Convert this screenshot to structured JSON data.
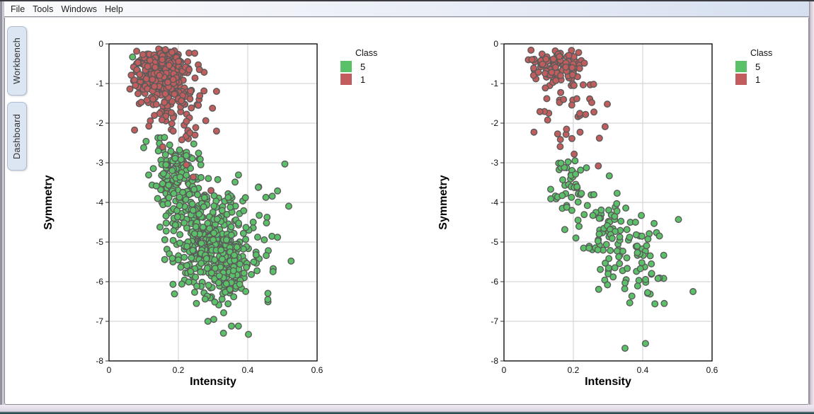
{
  "menu": {
    "items": [
      "File",
      "Tools",
      "Windows",
      "Help"
    ]
  },
  "sidebar": {
    "tabs": [
      {
        "label": "Workbench"
      },
      {
        "label": "Dashboard"
      }
    ]
  },
  "colors": {
    "class5_green": "#5bc168",
    "class1_red": "#c15d5d",
    "grid": "#d6d6d6",
    "point_outline": "#5a5a5a"
  },
  "chart_data": [
    {
      "type": "scatter",
      "title": "",
      "xlabel": "Intensity",
      "ylabel": "Symmetry",
      "xlim": [
        0,
        0.6
      ],
      "ylim": [
        -8,
        0
      ],
      "xtick_values": [
        0,
        0.2,
        0.4,
        0.6
      ],
      "xtick_labels": [
        "0",
        "0.2",
        "0.4",
        "0.6"
      ],
      "ytick_values": [
        0,
        -1,
        -2,
        -3,
        -4,
        -5,
        -6,
        -7,
        -8
      ],
      "ytick_labels": [
        "0",
        "-1",
        "-2",
        "-3",
        "-4",
        "-5",
        "-6",
        "-7",
        "-8"
      ],
      "grid": true,
      "grid_color": "#d6d6d6",
      "point_stroke": "#5a5a5a",
      "point_radius": 4.3,
      "legend": {
        "title": "Class",
        "position": "right-top",
        "entries": [
          {
            "label": "5",
            "color": "#5bc168"
          },
          {
            "label": "1",
            "color": "#c15d5d"
          }
        ]
      },
      "series": [
        {
          "name": "5",
          "color": "#5bc168",
          "blobs": [
            {
              "n": 120,
              "cx": 0.19,
              "cy": -3.35,
              "sx": 0.032,
              "sy": 0.42,
              "tilt": -8,
              "seed": 11,
              "clip": [
                0.1,
                0.3,
                -4.4,
                -2.35
              ]
            },
            {
              "n": 300,
              "cx": 0.27,
              "cy": -4.85,
              "sx": 0.05,
              "sy": 0.62,
              "tilt": -10,
              "seed": 12,
              "clip": [
                0.12,
                0.46,
                -6.6,
                -3.0
              ]
            },
            {
              "n": 140,
              "cx": 0.335,
              "cy": -5.55,
              "sx": 0.048,
              "sy": 0.5,
              "tilt": -8,
              "seed": 13,
              "clip": [
                0.17,
                0.5,
                -6.9,
                -4.2
              ]
            },
            {
              "n": 28,
              "cx": 0.42,
              "cy": -4.6,
              "sx": 0.045,
              "sy": 0.75,
              "tilt": 0,
              "seed": 14,
              "clip": [
                0.33,
                0.55,
                -6.3,
                -3.4
              ]
            }
          ],
          "points": [
            [
              0.068,
              -0.33
            ],
            [
              0.107,
              -2.46
            ],
            [
              0.1,
              -2.62
            ],
            [
              0.16,
              -2.36
            ],
            [
              0.507,
              -3.03
            ],
            [
              0.486,
              -3.71
            ],
            [
              0.525,
              -5.48
            ],
            [
              0.486,
              -4.88
            ],
            [
              0.33,
              -7.3
            ],
            [
              0.402,
              -7.33
            ],
            [
              0.353,
              -7.12
            ],
            [
              0.373,
              -7.12
            ],
            [
              0.302,
              -6.95
            ],
            [
              0.458,
              -6.45
            ],
            [
              0.285,
              -7.0
            ],
            [
              0.252,
              -6.55
            ]
          ]
        },
        {
          "name": "1",
          "color": "#c15d5d",
          "blobs": [
            {
              "n": 300,
              "cx": 0.15,
              "cy": -0.7,
              "sx": 0.042,
              "sy": 0.34,
              "tilt": 0,
              "seed": 21,
              "clip": [
                0.06,
                0.3,
                -1.75,
                -0.12
              ]
            },
            {
              "n": 90,
              "cx": 0.175,
              "cy": -1.35,
              "sx": 0.055,
              "sy": 0.45,
              "tilt": 0,
              "seed": 22,
              "clip": [
                0.06,
                0.33,
                -2.45,
                -0.5
              ]
            }
          ],
          "points": [
            [
              0.185,
              -2.2
            ],
            [
              0.248,
              -2.3
            ],
            [
              0.21,
              -2.42
            ],
            [
              0.223,
              -3.05
            ],
            [
              0.243,
              -3.36
            ],
            [
              0.294,
              -3.7
            ],
            [
              0.155,
              -2.6
            ],
            [
              0.31,
              -2.2
            ]
          ]
        }
      ]
    },
    {
      "type": "scatter",
      "title": "",
      "xlabel": "Intensity",
      "ylabel": "Symmetry",
      "xlim": [
        0,
        0.6
      ],
      "ylim": [
        -8,
        0
      ],
      "xtick_values": [
        0,
        0.2,
        0.4,
        0.6
      ],
      "xtick_labels": [
        "0",
        "0.2",
        "0.4",
        "0.6"
      ],
      "ytick_values": [
        0,
        -1,
        -2,
        -3,
        -4,
        -5,
        -6,
        -7,
        -8
      ],
      "ytick_labels": [
        "0",
        "-1",
        "-2",
        "-3",
        "-4",
        "-5",
        "-6",
        "-7",
        "-8"
      ],
      "grid": true,
      "grid_color": "#d6d6d6",
      "point_stroke": "#5a5a5a",
      "point_radius": 4.3,
      "legend": {
        "title": "Class",
        "position": "right-top",
        "entries": [
          {
            "label": "5",
            "color": "#5bc168"
          },
          {
            "label": "1",
            "color": "#c15d5d"
          }
        ]
      },
      "series": [
        {
          "name": "5",
          "color": "#5bc168",
          "blobs": [
            {
              "n": 40,
              "cx": 0.185,
              "cy": -3.5,
              "sx": 0.028,
              "sy": 0.4,
              "tilt": -8,
              "seed": 31,
              "clip": [
                0.12,
                0.26,
                -4.4,
                -2.75
              ]
            },
            {
              "n": 80,
              "cx": 0.3,
              "cy": -4.75,
              "sx": 0.055,
              "sy": 0.6,
              "tilt": -10,
              "seed": 32,
              "clip": [
                0.15,
                0.47,
                -6.4,
                -3.2
              ]
            },
            {
              "n": 45,
              "cx": 0.385,
              "cy": -5.6,
              "sx": 0.055,
              "sy": 0.5,
              "tilt": -6,
              "seed": 33,
              "clip": [
                0.24,
                0.5,
                -6.7,
                -4.4
              ]
            }
          ],
          "points": [
            [
              0.503,
              -4.43
            ],
            [
              0.545,
              -6.25
            ],
            [
              0.349,
              -7.68
            ],
            [
              0.408,
              -7.56
            ],
            [
              0.462,
              -6.55
            ],
            [
              0.205,
              -2.95
            ]
          ]
        },
        {
          "name": "1",
          "color": "#c15d5d",
          "blobs": [
            {
              "n": 110,
              "cx": 0.155,
              "cy": -0.55,
              "sx": 0.04,
              "sy": 0.26,
              "tilt": 0,
              "seed": 41,
              "clip": [
                0.07,
                0.28,
                -1.3,
                -0.12
              ]
            },
            {
              "n": 34,
              "cx": 0.175,
              "cy": -1.6,
              "sx": 0.048,
              "sy": 0.55,
              "tilt": 0,
              "seed": 42,
              "clip": [
                0.08,
                0.3,
                -2.85,
                -0.8
              ]
            }
          ],
          "points": [
            [
              0.272,
              -3.08
            ],
            [
              0.253,
              -1.48
            ],
            [
              0.298,
              -1.52
            ]
          ]
        }
      ]
    }
  ]
}
